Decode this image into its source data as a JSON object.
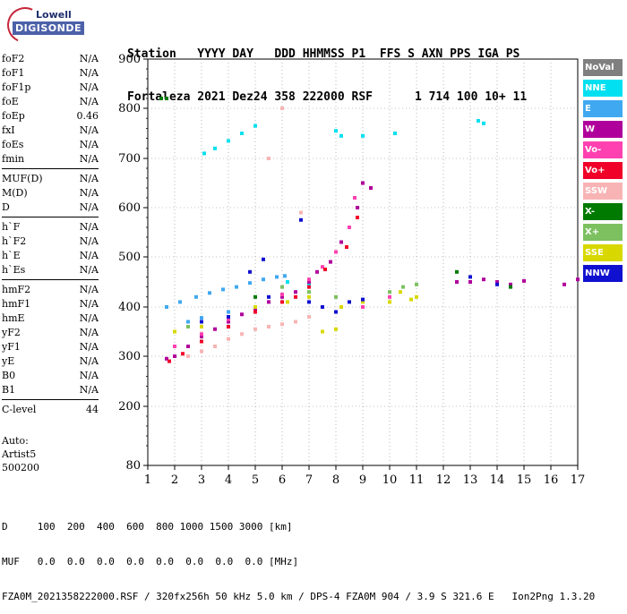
{
  "logo": {
    "line1": "Lowell",
    "line2": "DIGISONDE"
  },
  "header": {
    "row1": [
      "Station",
      "YYYY",
      "DAY",
      "DDD",
      "HHMMSS",
      "P1",
      "FFS",
      "S",
      "AXN",
      "PPS",
      "IGA",
      "PS"
    ],
    "row2": [
      "Fortaleza",
      "2021",
      "Dez24",
      "358",
      "222000",
      "RSF",
      "",
      "1",
      "714",
      "100",
      "10+",
      "11"
    ]
  },
  "params": {
    "group1": [
      {
        "k": "foF2",
        "v": "N/A"
      },
      {
        "k": "foF1",
        "v": "N/A"
      },
      {
        "k": "foF1p",
        "v": "N/A"
      },
      {
        "k": "foE",
        "v": "N/A"
      },
      {
        "k": "foEp",
        "v": "0.46"
      },
      {
        "k": "fxI",
        "v": "N/A"
      },
      {
        "k": "foEs",
        "v": "N/A"
      },
      {
        "k": "fmin",
        "v": "N/A"
      }
    ],
    "group2": [
      {
        "k": "MUF(D)",
        "v": "N/A"
      },
      {
        "k": "M(D)",
        "v": "N/A"
      },
      {
        "k": "D",
        "v": "N/A"
      }
    ],
    "group3": [
      {
        "k": "h`F",
        "v": "N/A"
      },
      {
        "k": "h`F2",
        "v": "N/A"
      },
      {
        "k": "h`E",
        "v": "N/A"
      },
      {
        "k": "h`Es",
        "v": "N/A"
      }
    ],
    "group4": [
      {
        "k": "hmF2",
        "v": "N/A"
      },
      {
        "k": "hmF1",
        "v": "N/A"
      },
      {
        "k": "hmE",
        "v": "N/A"
      },
      {
        "k": "yF2",
        "v": "N/A"
      },
      {
        "k": "yF1",
        "v": "N/A"
      },
      {
        "k": "yE",
        "v": "N/A"
      },
      {
        "k": "B0",
        "v": "N/A"
      },
      {
        "k": "B1",
        "v": "N/A"
      }
    ],
    "group5": [
      {
        "k": "C-level",
        "v": "44"
      }
    ]
  },
  "auto": {
    "line1": "Auto:",
    "line2": "Artist5",
    "line3": "500200"
  },
  "footer": {
    "line1": "D     100  200  400  600  800 1000 1500 3000 [km]",
    "line2": "MUF   0.0  0.0  0.0  0.0  0.0  0.0  0.0  0.0 [MHz]",
    "line3": "FZA0M_2021358222000.RSF / 320fx256h 50 kHz 5.0 km / DPS-4 FZA0M 904 / 3.9 S 321.6 E   Ion2Png 1.3.20"
  },
  "legend": [
    {
      "label": "NoVal",
      "color": "#7f7f7f"
    },
    {
      "label": "NNE",
      "color": "#00e0f0"
    },
    {
      "label": "E",
      "color": "#40a8f0"
    },
    {
      "label": "W",
      "color": "#b0009c"
    },
    {
      "label": "Vo-",
      "color": "#ff40b0"
    },
    {
      "label": "Vo+",
      "color": "#f00028"
    },
    {
      "label": "SSW",
      "color": "#f8b4b4"
    },
    {
      "label": "X-",
      "color": "#007a00"
    },
    {
      "label": "X+",
      "color": "#7cc060"
    },
    {
      "label": "SSE",
      "color": "#d8d800"
    },
    {
      "label": "NNW",
      "color": "#1010d0"
    }
  ],
  "chart_data": {
    "type": "scatter",
    "x_ticks": [
      "1",
      "2",
      "3",
      "4",
      "5",
      "6",
      "7",
      "8",
      "9",
      "10",
      "11",
      "12",
      "13",
      "14",
      "15",
      "16",
      "17"
    ],
    "y_ticks": [
      "80",
      "200",
      "300",
      "400",
      "500",
      "600",
      "700",
      "800",
      "900"
    ],
    "xlim": [
      1,
      17
    ],
    "ylim": [
      80,
      900
    ],
    "grid": true,
    "legend_position": "right",
    "series": [
      {
        "name": "E",
        "color": "#40a8f0",
        "points": [
          [
            1.7,
            400
          ],
          [
            2.2,
            410
          ],
          [
            2.8,
            420
          ],
          [
            3.3,
            428
          ],
          [
            3.8,
            435
          ],
          [
            4.3,
            440
          ],
          [
            4.8,
            448
          ],
          [
            5.3,
            455
          ],
          [
            5.8,
            460
          ],
          [
            6.1,
            462
          ],
          [
            2.5,
            370
          ],
          [
            3.0,
            378
          ],
          [
            4.0,
            390
          ]
        ]
      },
      {
        "name": "NNE",
        "color": "#00e0f0",
        "points": [
          [
            3.1,
            710
          ],
          [
            3.5,
            720
          ],
          [
            4.0,
            735
          ],
          [
            4.5,
            750
          ],
          [
            5.0,
            765
          ],
          [
            8.0,
            755
          ],
          [
            8.2,
            745
          ],
          [
            9.0,
            745
          ],
          [
            10.2,
            750
          ],
          [
            13.3,
            775
          ],
          [
            13.5,
            770
          ],
          [
            6.2,
            450
          ],
          [
            7.0,
            445
          ]
        ]
      },
      {
        "name": "W",
        "color": "#b0009c",
        "points": [
          [
            1.7,
            295
          ],
          [
            2.0,
            300
          ],
          [
            2.5,
            320
          ],
          [
            3.0,
            340
          ],
          [
            3.5,
            355
          ],
          [
            4.0,
            370
          ],
          [
            4.5,
            385
          ],
          [
            5.0,
            395
          ],
          [
            5.5,
            410
          ],
          [
            6.0,
            420
          ],
          [
            6.5,
            430
          ],
          [
            7.0,
            450
          ],
          [
            7.3,
            470
          ],
          [
            7.8,
            490
          ],
          [
            8.2,
            530
          ],
          [
            8.5,
            560
          ],
          [
            8.8,
            600
          ],
          [
            9.0,
            650
          ],
          [
            9.3,
            640
          ],
          [
            12.5,
            450
          ],
          [
            13.0,
            450
          ],
          [
            13.5,
            455
          ],
          [
            14.0,
            450
          ],
          [
            14.5,
            445
          ],
          [
            15.0,
            452
          ],
          [
            16.5,
            445
          ],
          [
            17.0,
            455
          ]
        ]
      },
      {
        "name": "Vo-",
        "color": "#ff40b0",
        "points": [
          [
            2.0,
            320
          ],
          [
            3.0,
            345
          ],
          [
            4.0,
            375
          ],
          [
            5.0,
            400
          ],
          [
            6.0,
            425
          ],
          [
            7.0,
            455
          ],
          [
            7.5,
            480
          ],
          [
            8.0,
            510
          ],
          [
            8.5,
            560
          ],
          [
            8.7,
            620
          ],
          [
            9.0,
            400
          ],
          [
            10.0,
            420
          ]
        ]
      },
      {
        "name": "Vo+",
        "color": "#f00028",
        "points": [
          [
            1.8,
            290
          ],
          [
            2.3,
            305
          ],
          [
            3.0,
            330
          ],
          [
            4.0,
            360
          ],
          [
            5.0,
            390
          ],
          [
            6.0,
            410
          ],
          [
            6.5,
            420
          ],
          [
            7.0,
            440
          ],
          [
            7.6,
            475
          ],
          [
            8.4,
            520
          ],
          [
            8.8,
            580
          ]
        ]
      },
      {
        "name": "SSW",
        "color": "#f8b4b4",
        "points": [
          [
            2.5,
            300
          ],
          [
            3.0,
            310
          ],
          [
            3.5,
            320
          ],
          [
            4.0,
            335
          ],
          [
            4.5,
            345
          ],
          [
            5.0,
            355
          ],
          [
            5.5,
            360
          ],
          [
            6.0,
            365
          ],
          [
            6.5,
            370
          ],
          [
            7.0,
            380
          ],
          [
            7.5,
            400
          ],
          [
            8.0,
            420
          ],
          [
            6.7,
            590
          ],
          [
            5.5,
            700
          ],
          [
            6.0,
            800
          ]
        ]
      },
      {
        "name": "X+",
        "color": "#7cc060",
        "points": [
          [
            2.5,
            360
          ],
          [
            4.0,
            380
          ],
          [
            6.0,
            440
          ],
          [
            7.0,
            430
          ],
          [
            8.0,
            420
          ],
          [
            10.0,
            430
          ],
          [
            10.5,
            440
          ],
          [
            11.0,
            445
          ]
        ]
      },
      {
        "name": "X-",
        "color": "#007a00",
        "points": [
          [
            1.5,
            820
          ],
          [
            1.7,
            820
          ],
          [
            5.0,
            420
          ],
          [
            7.5,
            350
          ],
          [
            12.5,
            470
          ],
          [
            14.5,
            440
          ]
        ]
      },
      {
        "name": "SSE",
        "color": "#d8d800",
        "points": [
          [
            2.0,
            350
          ],
          [
            3.0,
            360
          ],
          [
            4.0,
            380
          ],
          [
            5.0,
            400
          ],
          [
            6.2,
            410
          ],
          [
            7.0,
            420
          ],
          [
            7.5,
            350
          ],
          [
            8.0,
            355
          ],
          [
            8.2,
            400
          ],
          [
            9.0,
            410
          ],
          [
            10.0,
            410
          ],
          [
            10.4,
            430
          ],
          [
            10.8,
            415
          ],
          [
            11.0,
            420
          ]
        ]
      },
      {
        "name": "NNW",
        "color": "#1010d0",
        "points": [
          [
            3.0,
            370
          ],
          [
            4.0,
            380
          ],
          [
            5.5,
            420
          ],
          [
            7.0,
            410
          ],
          [
            7.5,
            400
          ],
          [
            8.0,
            390
          ],
          [
            8.5,
            410
          ],
          [
            9.0,
            415
          ],
          [
            13.0,
            460
          ],
          [
            14.0,
            445
          ],
          [
            6.7,
            575
          ],
          [
            5.3,
            495
          ],
          [
            4.8,
            470
          ]
        ]
      }
    ]
  }
}
